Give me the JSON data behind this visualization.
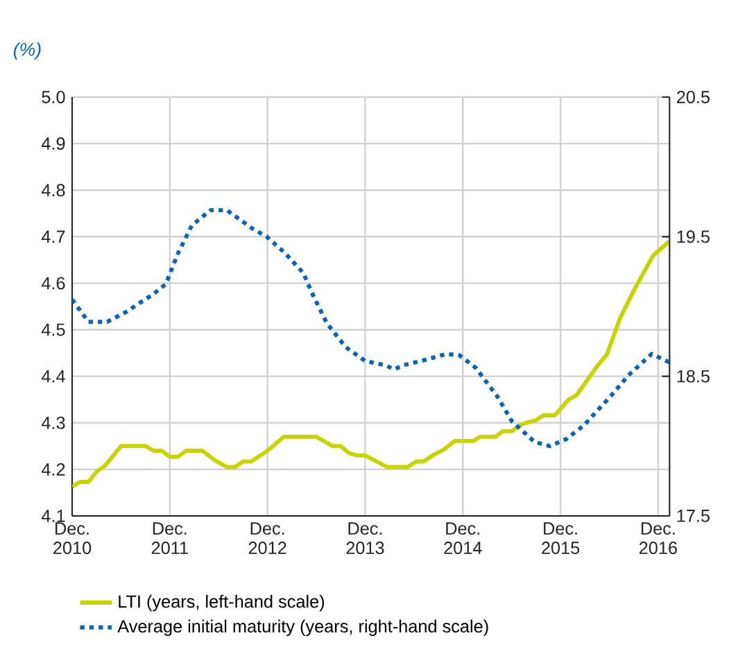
{
  "chart_data": {
    "type": "line",
    "ylabel": "(%)",
    "xlim": [
      "2010-12",
      "2017-01-13"
    ],
    "xticks": [
      {
        "value": "2010-12",
        "label": "Dec. 2010"
      },
      {
        "value": "2011-12",
        "label": "Dec. 2011"
      },
      {
        "value": "2012-12",
        "label": "Dec. 2012"
      },
      {
        "value": "2013-12",
        "label": "Dec. 2013"
      },
      {
        "value": "2014-12",
        "label": "Dec. 2014"
      },
      {
        "value": "2015-12",
        "label": "Dec. 2015"
      },
      {
        "value": "2016-12",
        "label": "Dec. 2016"
      }
    ],
    "ylim": [
      4.1,
      5.0
    ],
    "yticks": [
      4.1,
      4.2,
      4.3,
      4.4,
      4.5,
      4.6,
      4.7,
      4.8,
      4.9,
      {
        "value": 5.0,
        "label": "5.0"
      }
    ],
    "y2lim": [
      17.5,
      20.5
    ],
    "y2ticks": [
      17.5,
      18.5,
      19.5,
      20.5
    ],
    "grid": true,
    "legend": "bottom",
    "series": [
      {
        "name": "LTI (years, left-hand scale)",
        "color": "#c8d400",
        "line_style": "solid",
        "x": [
          "2010-12",
          "2011-01",
          "2011-02",
          "2011-03",
          "2011-04",
          "2011-06",
          "2011-09",
          "2011-10",
          "2011-11",
          "2011-12",
          "2012-01",
          "2012-02",
          "2012-04",
          "2012-05-16",
          "2012-07",
          "2012-08",
          "2012-09",
          "2012-10",
          "2012-12",
          "2013-02",
          "2013-06",
          "2013-07",
          "2013-08",
          "2013-09",
          "2013-10",
          "2013-11",
          "2013-12",
          "2014-02-22",
          "2014-05-07",
          "2014-06-10",
          "2014-07-07",
          "2014-08-10",
          "2014-09-22",
          "2014-11",
          "2015-01-10",
          "2015-02-04",
          "2015-04",
          "2015-04-28",
          "2015-06",
          "2015-07-13",
          "2015-09",
          "2015-09-28",
          "2015-11-10",
          "2016-01",
          "2016-02",
          "2016-04-19",
          "2016-05-22",
          "2016-07-10",
          "2016-09",
          "2016-11-13",
          "2017-01-13"
        ],
        "values": [
          4.163,
          4.173,
          4.173,
          4.195,
          4.207,
          4.25,
          4.25,
          4.24,
          4.24,
          4.227,
          4.227,
          4.24,
          4.24,
          4.22,
          4.205,
          4.205,
          4.217,
          4.217,
          4.24,
          4.27,
          4.27,
          4.26,
          4.25,
          4.25,
          4.235,
          4.23,
          4.23,
          4.205,
          4.205,
          4.217,
          4.217,
          4.23,
          4.243,
          4.261,
          4.261,
          4.27,
          4.27,
          4.282,
          4.282,
          4.298,
          4.306,
          4.316,
          4.316,
          4.35,
          4.36,
          4.424,
          4.447,
          4.524,
          4.584,
          4.66,
          4.69
        ]
      },
      {
        "name": "Average initial maturity (years, right-hand scale)",
        "color": "#0a64b4",
        "line_style": "dotted",
        "axis": "y2",
        "x": [
          "2010-12",
          "2011-02",
          "2011-04-10",
          "2011-06-19",
          "2011-10",
          "2011-11-16",
          "2012-01",
          "2012-02-22",
          "2012-05",
          "2012-07",
          "2012-10-04",
          "2012-11-28",
          "2013-02-07",
          "2013-04-13",
          "2013-05-19",
          "2013-07-10",
          "2013-09-19",
          "2013-12",
          "2014-02-13",
          "2014-03-19",
          "2014-04-22",
          "2014-06-28",
          "2014-10",
          "2014-11-19",
          "2015-01-19",
          "2015-04-10",
          "2015-06",
          "2015-08-25",
          "2015-10-22",
          "2015-12-22",
          "2016-02-28",
          "2016-06-07",
          "2016-08-13",
          "2016-11-07",
          "2017-01-13"
        ],
        "values": [
          19.05,
          18.89,
          18.89,
          18.96,
          19.09,
          19.16,
          19.38,
          19.58,
          19.69,
          19.69,
          19.56,
          19.5,
          19.38,
          19.24,
          19.08,
          18.88,
          18.71,
          18.61,
          18.58,
          18.55,
          18.58,
          18.61,
          18.66,
          18.65,
          18.56,
          18.35,
          18.18,
          18.03,
          18.0,
          18.05,
          18.15,
          18.36,
          18.51,
          18.66,
          18.6
        ]
      }
    ]
  }
}
